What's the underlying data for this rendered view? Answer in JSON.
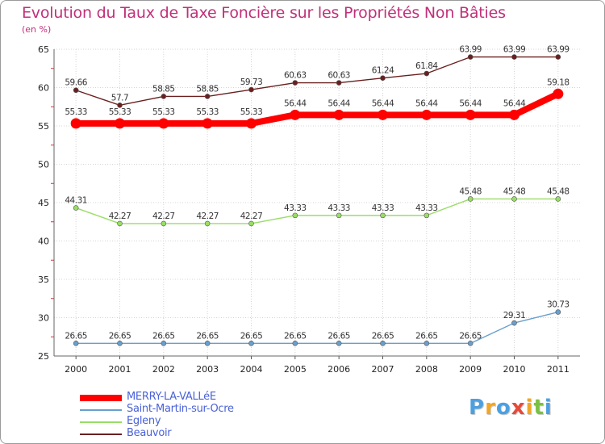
{
  "chart_data": {
    "type": "line",
    "title": "Evolution du Taux de Taxe Foncière sur les Propriétés Non Bâties",
    "subtitle": "(en %)",
    "xlabel": "",
    "ylabel": "",
    "x": [
      "2000",
      "2001",
      "2002",
      "2003",
      "2004",
      "2005",
      "2006",
      "2007",
      "2008",
      "2009",
      "2010",
      "2011"
    ],
    "ylim": [
      25,
      65
    ],
    "yticks": [
      25,
      30,
      35,
      40,
      45,
      50,
      55,
      60,
      65
    ],
    "grid": true,
    "legend_position": "bottom-left",
    "series": [
      {
        "name": "Beauvoir",
        "color": "#6b1f1f",
        "values": [
          59.66,
          57.7,
          58.85,
          58.85,
          59.73,
          60.63,
          60.63,
          61.24,
          61.84,
          63.99,
          63.99,
          63.99
        ],
        "labels": [
          "59.66",
          "57.7",
          "58.85",
          "58.85",
          "59.73",
          "60.63",
          "60.63",
          "61.24",
          "61.84",
          "63.99",
          "63.99",
          "63.99"
        ]
      },
      {
        "name": "MERRY-LA-VALLéE",
        "color": "#ff0000",
        "values": [
          55.33,
          55.33,
          55.33,
          55.33,
          55.33,
          56.44,
          56.44,
          56.44,
          56.44,
          56.44,
          56.44,
          59.18
        ],
        "labels": [
          "55.33",
          "55.33",
          "55.33",
          "55.33",
          "55.33",
          "56.44",
          "56.44",
          "56.44",
          "56.44",
          "56.44",
          "56.44",
          "59.18"
        ]
      },
      {
        "name": "Egleny",
        "color": "#99dd66",
        "values": [
          44.31,
          42.27,
          42.27,
          42.27,
          42.27,
          43.33,
          43.33,
          43.33,
          43.33,
          45.48,
          45.48,
          45.48
        ],
        "labels": [
          "44.31",
          "42.27",
          "42.27",
          "42.27",
          "42.27",
          "43.33",
          "43.33",
          "43.33",
          "43.33",
          "45.48",
          "45.48",
          "45.48"
        ]
      },
      {
        "name": "Saint-Martin-sur-Ocre",
        "color": "#6a9fcc",
        "values": [
          26.65,
          26.65,
          26.65,
          26.65,
          26.65,
          26.65,
          26.65,
          26.65,
          26.65,
          26.65,
          29.31,
          30.73
        ],
        "labels": [
          "26.65",
          "26.65",
          "26.65",
          "26.65",
          "26.65",
          "26.65",
          "26.65",
          "26.65",
          "26.65",
          "26.65",
          "29.31",
          "30.73"
        ]
      }
    ],
    "legend": [
      {
        "name": "MERRY-LA-VALLéE",
        "color": "#ff0000"
      },
      {
        "name": "Saint-Martin-sur-Ocre",
        "color": "#6a9fcc"
      },
      {
        "name": "Egleny",
        "color": "#99dd66"
      },
      {
        "name": "Beauvoir",
        "color": "#6b1f1f"
      }
    ]
  },
  "logo": {
    "letters": [
      "P",
      "r",
      "o",
      "x",
      "i",
      "t",
      "i"
    ],
    "colors": [
      "#4da0e0",
      "#f2a623",
      "#4da0e0",
      "#e84a3a",
      "#f2a623",
      "#7bc043",
      "#4da0e0"
    ]
  }
}
